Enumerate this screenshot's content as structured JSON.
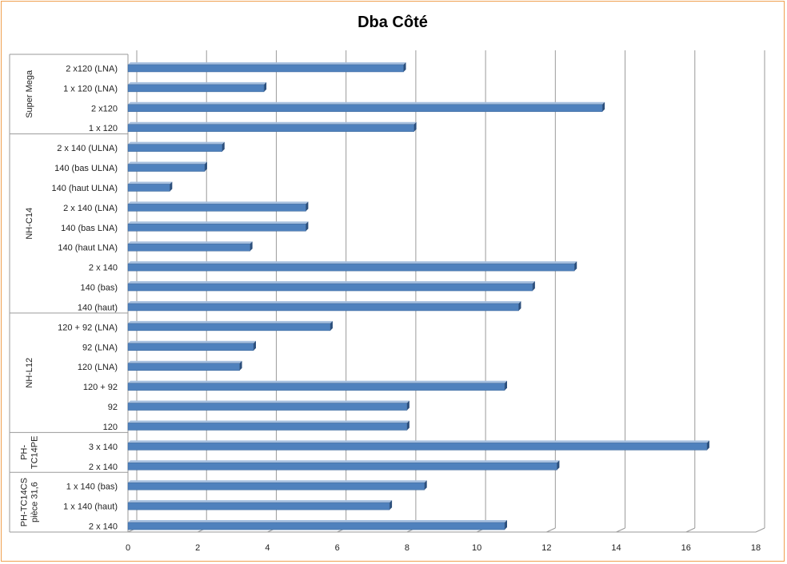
{
  "chart_data": {
    "type": "bar",
    "orientation": "horizontal",
    "title": "Dba Côté",
    "xlim": [
      0,
      18
    ],
    "x_ticks": [
      0,
      2,
      4,
      6,
      8,
      10,
      12,
      14,
      16,
      18
    ],
    "grid": true,
    "bar_color": "#4f81bd",
    "groups": [
      {
        "name": "Super Mega",
        "categories": [
          {
            "label": "2 x120 (LNA)",
            "value": 7.9
          },
          {
            "label": "1 x 120 (LNA)",
            "value": 3.9
          },
          {
            "label": "2 x120",
            "value": 13.6
          },
          {
            "label": "1 x 120",
            "value": 8.2
          }
        ]
      },
      {
        "name": "NH-C14",
        "categories": [
          {
            "label": "2 x 140 (ULNA)",
            "value": 2.7
          },
          {
            "label": "140 (bas ULNA)",
            "value": 2.2
          },
          {
            "label": "140 (haut ULNA)",
            "value": 1.2
          },
          {
            "label": "2 x 140 (LNA)",
            "value": 5.1
          },
          {
            "label": "140 (bas LNA)",
            "value": 5.1
          },
          {
            "label": "140 (haut LNA)",
            "value": 3.5
          },
          {
            "label": "2 x 140",
            "value": 12.8
          },
          {
            "label": "140 (bas)",
            "value": 11.6
          },
          {
            "label": "140 (haut)",
            "value": 11.2
          }
        ]
      },
      {
        "name": "NH-L12",
        "categories": [
          {
            "label": "120 + 92 (LNA)",
            "value": 5.8
          },
          {
            "label": "92 (LNA)",
            "value": 3.6
          },
          {
            "label": "120 (LNA)",
            "value": 3.2
          },
          {
            "label": "120 + 92",
            "value": 10.8
          },
          {
            "label": "92",
            "value": 8.0
          },
          {
            "label": "120",
            "value": 8.0
          }
        ]
      },
      {
        "name": "PH-TC14PE",
        "name_lines": [
          "PH-",
          "TC14PE"
        ],
        "categories": [
          {
            "label": "3 x 140",
            "value": 16.6
          },
          {
            "label": "2 x 140",
            "value": 12.3
          }
        ]
      },
      {
        "name": "PH-TC14CS pièce 31,6",
        "name_lines": [
          "PH-TC14CS",
          "pièce 31,6"
        ],
        "categories": [
          {
            "label": "1 x 140 (bas)",
            "value": 8.5
          },
          {
            "label": "1 x 140 (haut)",
            "value": 7.5
          },
          {
            "label": "2 x 140",
            "value": 10.8
          }
        ]
      }
    ]
  }
}
